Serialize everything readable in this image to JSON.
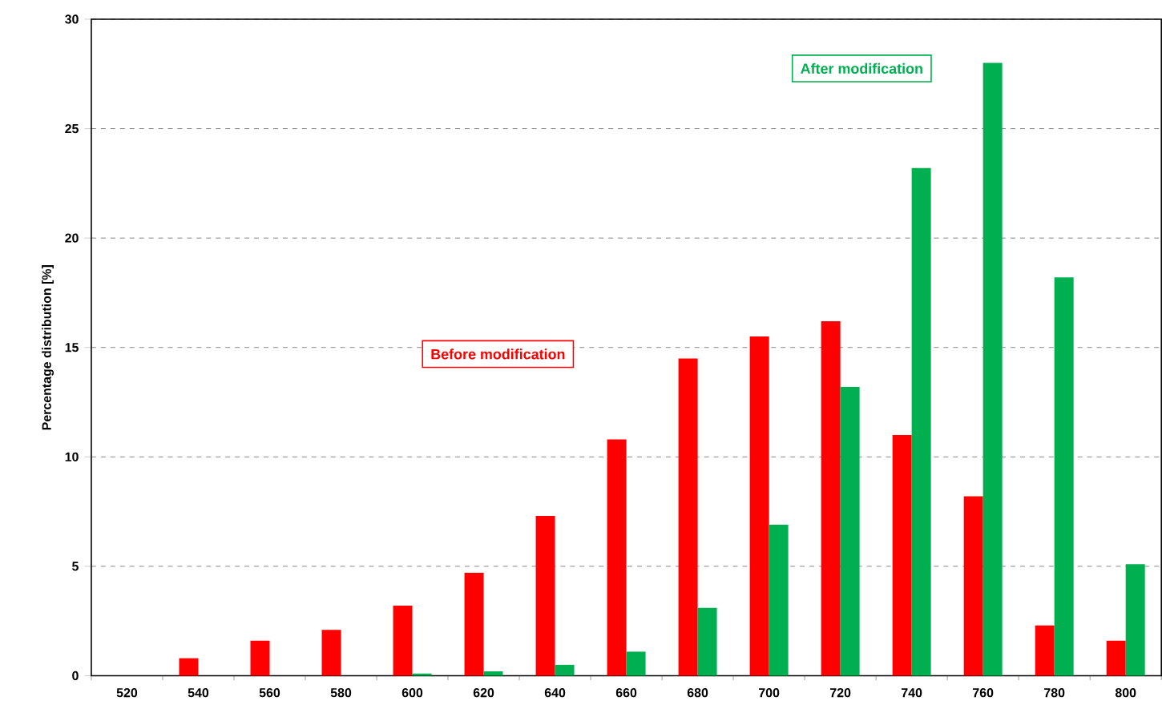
{
  "chart_data": {
    "type": "bar",
    "ylabel": "Percentage distribution [%]",
    "categories": [
      "520",
      "540",
      "560",
      "580",
      "600",
      "620",
      "640",
      "660",
      "680",
      "700",
      "720",
      "740",
      "760",
      "780",
      "800"
    ],
    "series": [
      {
        "name": "Before modification",
        "color": "#ff0000",
        "values": [
          0,
          0.8,
          1.6,
          2.1,
          3.2,
          4.7,
          7.3,
          10.8,
          14.5,
          15.5,
          16.2,
          11.0,
          8.2,
          2.3,
          1.6
        ]
      },
      {
        "name": "After modification",
        "color": "#00b050",
        "values": [
          0,
          0,
          0,
          0,
          0.1,
          0.2,
          0.5,
          1.1,
          3.1,
          6.9,
          13.2,
          23.2,
          28.0,
          18.2,
          5.1
        ]
      }
    ],
    "ylim": [
      0,
      30
    ],
    "yticks": [
      0,
      5,
      10,
      15,
      20,
      25,
      30
    ],
    "grid": "y"
  }
}
